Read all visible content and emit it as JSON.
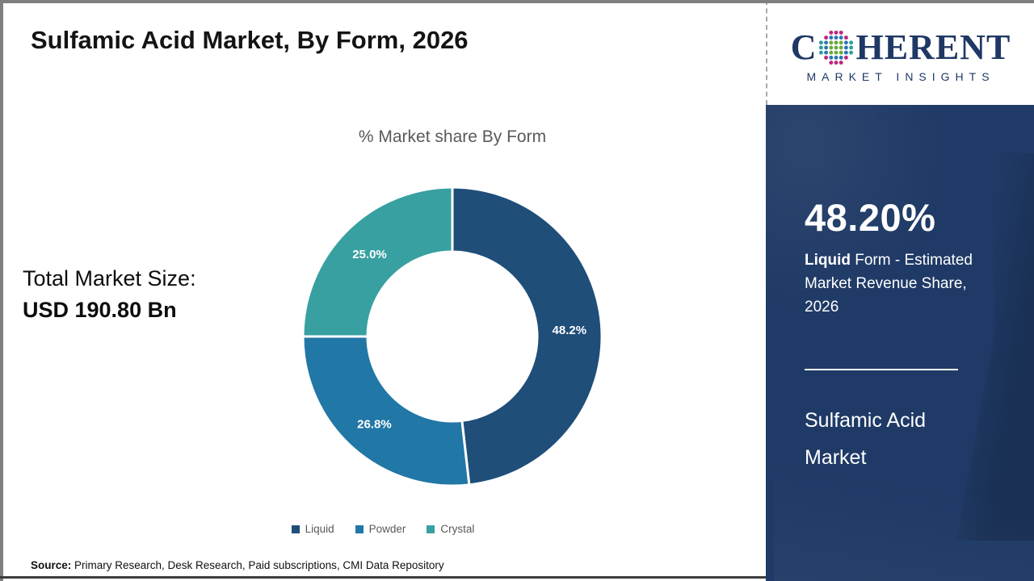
{
  "page": {
    "title": "Sulfamic Acid Market, By Form, 2026",
    "source_label": "Source:",
    "source_text": " Primary Research, Desk Research, Paid subscriptions, CMI Data Repository"
  },
  "stats": {
    "total_label": "Total Market Size:",
    "total_value": "USD 190.80 Bn"
  },
  "chart_data": {
    "type": "pie",
    "subtype": "donut",
    "title": "% Market share By Form",
    "categories": [
      "Liquid",
      "Powder",
      "Crystal"
    ],
    "values": [
      48.2,
      26.8,
      25.0
    ],
    "slice_labels": [
      "48.2%",
      "26.8%",
      "25.0%"
    ],
    "colors": [
      "#1F4E79",
      "#2177A6",
      "#38A0A0"
    ],
    "start_angle_deg": 0,
    "direction": "clockwise",
    "legend_position": "bottom"
  },
  "logo": {
    "word_start": "C",
    "word_end": "HERENT",
    "subtitle": "MARKET INSIGHTS",
    "brand_color": "#1F3864",
    "globe_colors": {
      "center": "#6CAB3C",
      "mid": "#2E75B6",
      "outer_v": "#C0267E",
      "outer_h": "#2E9B9B"
    }
  },
  "sidebar": {
    "highlight_value": "48.20%",
    "highlight_bold": "Liquid",
    "highlight_rest": " Form - Estimated Market Revenue Share, 2026",
    "market_name_line1": "Sulfamic Acid",
    "market_name_line2": "Market",
    "bg_color": "#1F3A66"
  }
}
